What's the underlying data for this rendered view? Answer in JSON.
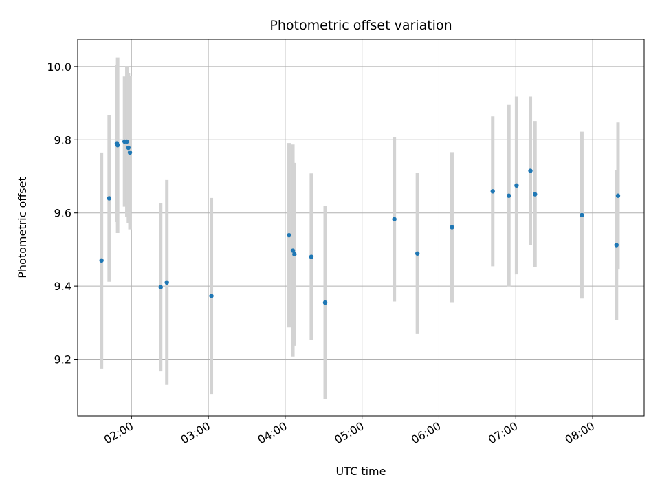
{
  "chart_data": {
    "type": "scatter",
    "title": "Photometric offset variation",
    "xlabel": "UTC time",
    "ylabel": "Photometric offset",
    "x_unit": "hours UTC",
    "xlim": [
      1.3,
      8.67
    ],
    "ylim": [
      9.045,
      10.075
    ],
    "x_ticks": [
      {
        "value": 2,
        "label": "02:00"
      },
      {
        "value": 3,
        "label": "03:00"
      },
      {
        "value": 4,
        "label": "04:00"
      },
      {
        "value": 5,
        "label": "05:00"
      },
      {
        "value": 6,
        "label": "06:00"
      },
      {
        "value": 7,
        "label": "07:00"
      },
      {
        "value": 8,
        "label": "08:00"
      }
    ],
    "y_ticks": [
      {
        "value": 9.2,
        "label": "9.2"
      },
      {
        "value": 9.4,
        "label": "9.4"
      },
      {
        "value": 9.6,
        "label": "9.6"
      },
      {
        "value": 9.8,
        "label": "9.8"
      },
      {
        "value": 10.0,
        "label": "10.0"
      }
    ],
    "grid": true,
    "marker_color": "#1f77b4",
    "errorbar_color": "#d3d3d3",
    "points": [
      {
        "x": 1.61,
        "y": 9.47,
        "err": 0.295
      },
      {
        "x": 1.71,
        "y": 9.64,
        "err": 0.228
      },
      {
        "x": 1.81,
        "y": 9.79,
        "err": 0.215
      },
      {
        "x": 1.82,
        "y": 9.785,
        "err": 0.24
      },
      {
        "x": 1.91,
        "y": 9.795,
        "err": 0.178
      },
      {
        "x": 1.94,
        "y": 9.795,
        "err": 0.205
      },
      {
        "x": 1.96,
        "y": 9.778,
        "err": 0.205
      },
      {
        "x": 1.98,
        "y": 9.765,
        "err": 0.21
      },
      {
        "x": 2.38,
        "y": 9.397,
        "err": 0.23
      },
      {
        "x": 2.46,
        "y": 9.41,
        "err": 0.28
      },
      {
        "x": 3.04,
        "y": 9.373,
        "err": 0.268
      },
      {
        "x": 4.05,
        "y": 9.539,
        "err": 0.252
      },
      {
        "x": 4.1,
        "y": 9.497,
        "err": 0.29
      },
      {
        "x": 4.12,
        "y": 9.487,
        "err": 0.25
      },
      {
        "x": 4.34,
        "y": 9.48,
        "err": 0.228
      },
      {
        "x": 4.52,
        "y": 9.355,
        "err": 0.265
      },
      {
        "x": 5.42,
        "y": 9.583,
        "err": 0.225
      },
      {
        "x": 5.72,
        "y": 9.489,
        "err": 0.22
      },
      {
        "x": 6.17,
        "y": 9.561,
        "err": 0.205
      },
      {
        "x": 6.7,
        "y": 9.659,
        "err": 0.205
      },
      {
        "x": 6.91,
        "y": 9.647,
        "err": 0.248
      },
      {
        "x": 7.01,
        "y": 9.675,
        "err": 0.243
      },
      {
        "x": 7.19,
        "y": 9.715,
        "err": 0.203
      },
      {
        "x": 7.25,
        "y": 9.651,
        "err": 0.2
      },
      {
        "x": 7.86,
        "y": 9.594,
        "err": 0.228
      },
      {
        "x": 8.31,
        "y": 9.512,
        "err": 0.204
      },
      {
        "x": 8.33,
        "y": 9.647,
        "err": 0.2
      }
    ]
  }
}
